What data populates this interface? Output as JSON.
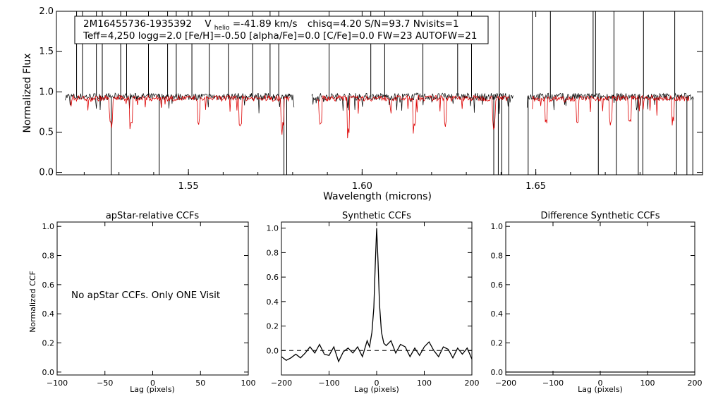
{
  "chart_data": [
    {
      "panel": "spectrum",
      "type": "line",
      "info_line1": {
        "star": "2M16455736-1935392",
        "v_label": "V",
        "v_sub": "helio",
        "v_value": "=-41.89 km/s",
        "rest": "chisq=4.20  S/N=93.7  Nvisits=1"
      },
      "info_line2": "Teff=4,250 logg=2.0 [Fe/H]=-0.50 [alpha/Fe]=0.0 [C/Fe]=0.0 FW=23 AUTOFW=21",
      "xlabel": "Wavelength (microns)",
      "ylabel": "Normalized Flux",
      "xlim": [
        1.512,
        1.698
      ],
      "ylim": [
        -0.03,
        2.0
      ],
      "xticks": [
        1.55,
        1.6,
        1.65
      ],
      "xtick_labels": [
        "1.55",
        "1.60",
        "1.65"
      ],
      "yticks": [
        0.0,
        0.5,
        1.0,
        1.5,
        2.0
      ],
      "ytick_labels": [
        "0.0",
        "0.5",
        "1.0",
        "1.5",
        "2.0"
      ],
      "chip_ranges": [
        [
          1.5145,
          1.5805
        ],
        [
          1.5855,
          1.6435
        ],
        [
          1.6475,
          1.6955
        ]
      ],
      "series": [
        {
          "color": "#000000",
          "continuum": 0.94,
          "spikes_up": [
            1.5178,
            1.5195,
            1.5235,
            1.5252,
            1.5305,
            1.5322,
            1.5385,
            1.544,
            1.5465,
            1.551,
            1.556,
            1.5615,
            1.5685,
            1.5735,
            1.576,
            1.5905,
            1.6025,
            1.6065,
            1.6175,
            1.6275,
            1.6315,
            1.6395,
            1.649,
            1.6542,
            1.6665,
            1.6672,
            1.6725,
            1.681,
            1.69
          ],
          "spikes_down": [
            1.5278,
            1.5416,
            1.5775,
            1.5783,
            1.6379,
            1.6392,
            1.6402,
            1.6422,
            1.6478,
            1.668,
            1.6732,
            1.6795,
            1.6808,
            1.6905,
            1.6935,
            1.6952
          ]
        },
        {
          "color": "#dd0000",
          "continuum": 0.92,
          "absorptions": [
            1.5278,
            1.5335,
            1.553,
            1.565,
            1.577,
            1.588,
            1.596,
            1.615,
            1.624,
            1.638,
            1.653,
            1.662,
            1.6715,
            1.677,
            1.6895
          ]
        }
      ]
    },
    {
      "panel": "apstar_ccf",
      "type": "line",
      "title": "apStar-relative CCFs",
      "xlabel": "Lag (pixels)",
      "ylabel": "Normalized CCF",
      "xlim": [
        -100,
        100
      ],
      "ylim": [
        -0.02,
        1.03
      ],
      "xticks": [
        -100,
        -50,
        0,
        50,
        100
      ],
      "xtick_labels": [
        "−100",
        "−50",
        "0",
        "50",
        "100"
      ],
      "yticks": [
        0.0,
        0.2,
        0.4,
        0.6,
        0.8,
        1.0
      ],
      "ytick_labels": [
        "0.0",
        "0.2",
        "0.4",
        "0.6",
        "0.8",
        "1.0"
      ],
      "message": "No apStar CCFs.  Only ONE Visit",
      "series": []
    },
    {
      "panel": "synthetic_ccf",
      "type": "line",
      "title": "Synthetic CCFs",
      "xlabel": "Lag (pixels)",
      "xlim": [
        -200,
        200
      ],
      "ylim": [
        -0.2,
        1.05
      ],
      "xticks": [
        -200,
        -100,
        0,
        100,
        200
      ],
      "xtick_labels": [
        "−200",
        "−100",
        "0",
        "100",
        "200"
      ],
      "yticks": [
        0.0,
        0.2,
        0.4,
        0.6,
        0.8,
        1.0
      ],
      "ytick_labels": [
        "0.0",
        "0.2",
        "0.4",
        "0.6",
        "0.8",
        "1.0"
      ],
      "zero_line": 0.0,
      "series": [
        {
          "color": "#000000",
          "x": [
            -200,
            -190,
            -180,
            -170,
            -160,
            -150,
            -140,
            -130,
            -120,
            -110,
            -100,
            -90,
            -80,
            -70,
            -60,
            -50,
            -40,
            -30,
            -20,
            -15,
            -10,
            -6,
            -3,
            0,
            3,
            6,
            10,
            15,
            20,
            30,
            40,
            50,
            60,
            70,
            80,
            90,
            100,
            110,
            120,
            130,
            140,
            150,
            160,
            170,
            180,
            190,
            200
          ],
          "y": [
            -0.05,
            -0.08,
            -0.06,
            -0.03,
            -0.06,
            -0.02,
            0.03,
            -0.02,
            0.05,
            -0.03,
            -0.04,
            0.03,
            -0.09,
            -0.01,
            0.02,
            -0.02,
            0.03,
            -0.05,
            0.08,
            0.03,
            0.15,
            0.35,
            0.7,
            1.0,
            0.72,
            0.38,
            0.15,
            0.06,
            0.04,
            0.08,
            -0.02,
            0.05,
            0.03,
            -0.05,
            0.02,
            -0.04,
            0.03,
            0.07,
            0.0,
            -0.05,
            0.03,
            0.01,
            -0.06,
            0.02,
            -0.03,
            0.02,
            -0.07
          ]
        }
      ]
    },
    {
      "panel": "difference_ccf",
      "type": "line",
      "title": "Difference Synthetic CCFs",
      "xlabel": "Lag (pixels)",
      "xlim": [
        -200,
        200
      ],
      "ylim": [
        -0.02,
        1.03
      ],
      "xticks": [
        -200,
        -100,
        0,
        100,
        200
      ],
      "xtick_labels": [
        "−200",
        "−100",
        "0",
        "100",
        "200"
      ],
      "yticks": [
        0.0,
        0.2,
        0.4,
        0.6,
        0.8,
        1.0
      ],
      "ytick_labels": [
        "0.0",
        "0.2",
        "0.4",
        "0.6",
        "0.8",
        "1.0"
      ],
      "series": [
        {
          "color": "#000000",
          "x": [
            -200,
            200
          ],
          "y": [
            0.0,
            0.0
          ]
        }
      ]
    }
  ]
}
